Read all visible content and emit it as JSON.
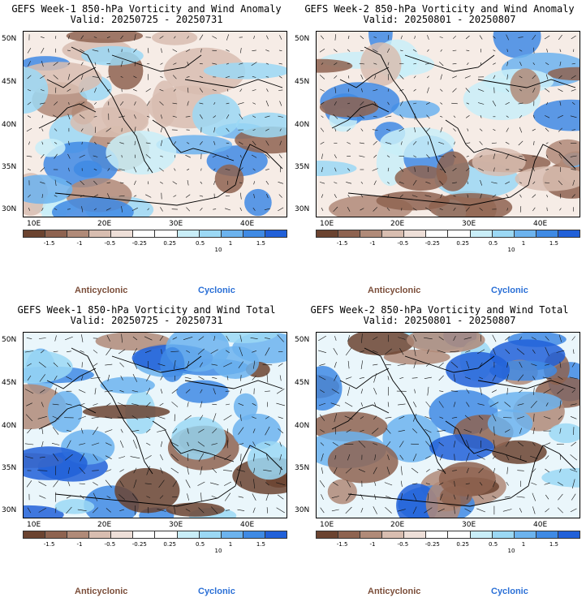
{
  "panels": [
    {
      "title_line1": "GEFS Week-1 850-hPa Vorticity and Wind Anomaly",
      "title_line2": "Valid: 20250725 - 20250731"
    },
    {
      "title_line1": "GEFS Week-2 850-hPa Vorticity and Wind Anomaly",
      "title_line2": "Valid: 20250801 - 20250807"
    },
    {
      "title_line1": "GEFS Week-1 850-hPa Vorticity and Wind Total",
      "title_line2": "Valid: 20250725 - 20250731"
    },
    {
      "title_line1": "GEFS Week-2 850-hPa Vorticity and Wind Total",
      "title_line2": "Valid: 20250801 - 20250807"
    }
  ],
  "lat_labels": [
    "50N",
    "45N",
    "40N",
    "35N",
    "30N"
  ],
  "lon_labels": [
    "10E",
    "20E",
    "30E",
    "40E"
  ],
  "colorbar": {
    "ticks": [
      "-1.5",
      "-1",
      "-0.5",
      "-0.25",
      "0.25",
      "0.5",
      "1",
      "1.5"
    ],
    "scale_label": "10",
    "colors": [
      "#6b4330",
      "#8e6350",
      "#b08a78",
      "#d8bdb0",
      "#eedfd8",
      "#ffffff",
      "#ffffff",
      "#c9eef8",
      "#9bd8f4",
      "#6cb3ee",
      "#3f8ae4",
      "#2160d8"
    ]
  },
  "legend": {
    "anticyclonic": "Anticyclonic",
    "cyclonic": "Cyclonic"
  },
  "colors": {
    "anticyclonic": "#7b4e3a",
    "cyclonic": "#2a6fd6",
    "brown_dark": "#8a5a47",
    "blue_dark": "#3a86df"
  }
}
